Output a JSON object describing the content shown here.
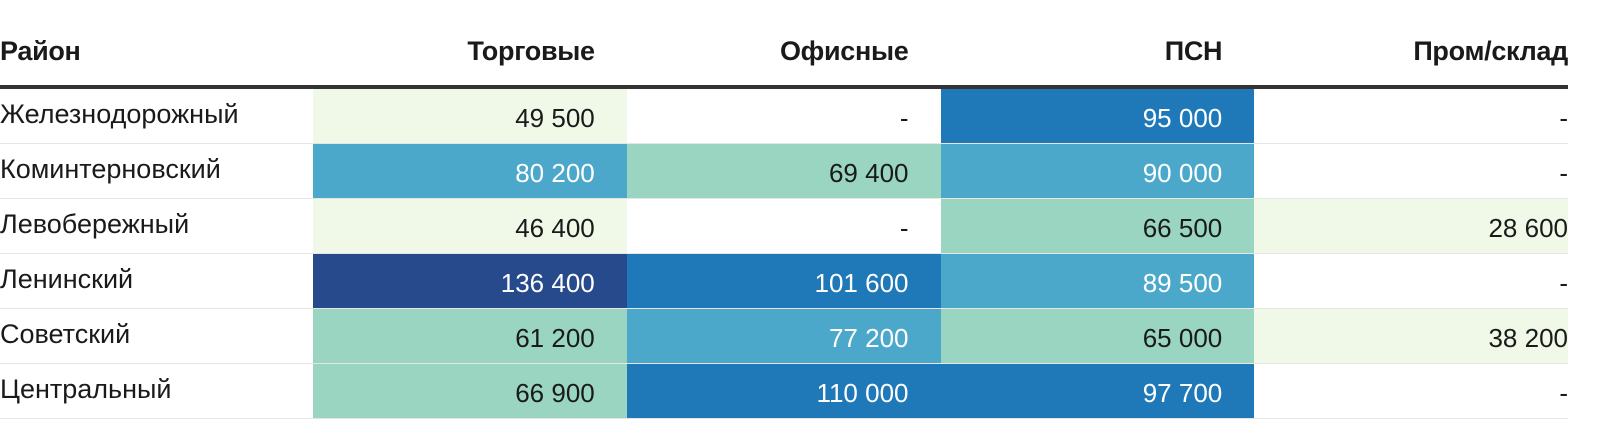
{
  "chart_data": {
    "type": "table",
    "columns": [
      "Район",
      "Торговые",
      "Офисные",
      "ПСН",
      "Пром/склад"
    ],
    "rows": [
      {
        "district": "Железнодорожный",
        "cells": [
          "49 500",
          "-",
          "95 000",
          "-"
        ],
        "values": [
          49500,
          null,
          95000,
          null
        ]
      },
      {
        "district": "Коминтерновский",
        "cells": [
          "80 200",
          "69 400",
          "90 000",
          "-"
        ],
        "values": [
          80200,
          69400,
          90000,
          null
        ]
      },
      {
        "district": "Левобережный",
        "cells": [
          "46 400",
          "-",
          "66 500",
          "28 600"
        ],
        "values": [
          46400,
          null,
          66500,
          28600
        ]
      },
      {
        "district": "Ленинский",
        "cells": [
          "136 400",
          "101 600",
          "89 500",
          "-"
        ],
        "values": [
          136400,
          101600,
          89500,
          null
        ]
      },
      {
        "district": "Советский",
        "cells": [
          "61 200",
          "77 200",
          "65 000",
          "38 200"
        ],
        "values": [
          61200,
          77200,
          65000,
          38200
        ]
      },
      {
        "district": "Центральный",
        "cells": [
          "66 900",
          "110 000",
          "97 700",
          "-"
        ],
        "values": [
          66900,
          110000,
          97700,
          null
        ]
      }
    ],
    "color_scale": {
      "thresholds": [
        50000,
        70000,
        92000,
        120000
      ],
      "colors": [
        "#f0f8e8",
        "#99d5c1",
        "#4ba8cb",
        "#1f78b8",
        "#264a8c"
      ],
      "text_colors": [
        "#1a1a1a",
        "#1a1a1a",
        "#ffffff",
        "#ffffff",
        "#ffffff"
      ],
      "empty_color": "#ffffff"
    }
  }
}
